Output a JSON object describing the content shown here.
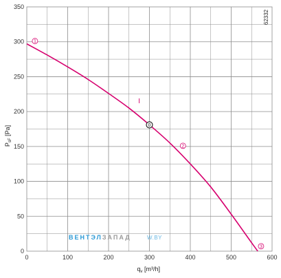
{
  "chart_data": {
    "type": "line",
    "xlabel": {
      "main": "q",
      "sub": "v",
      "unit": " [m³/h]"
    },
    "ylabel": {
      "main": "P",
      "sub": "sF",
      "unit": " [Pa]"
    },
    "xlim": [
      0,
      600
    ],
    "ylim": [
      0,
      350
    ],
    "x_ticks": [
      0,
      100,
      200,
      300,
      400,
      500,
      600
    ],
    "y_ticks": [
      0,
      50,
      100,
      150,
      200,
      250,
      300,
      350
    ],
    "grid": true,
    "code": "62332",
    "series": [
      {
        "color": "#d6006e",
        "x": [
          0,
          50,
          100,
          150,
          200,
          250,
          300,
          350,
          400,
          450,
          500,
          550,
          565
        ],
        "y": [
          297,
          281,
          264,
          246,
          226,
          205,
          181,
          155,
          125,
          92,
          53,
          12,
          0
        ]
      }
    ],
    "curve_label": {
      "text": "I",
      "x": 275,
      "y": 212
    },
    "operating_points": [
      {
        "label": "1",
        "x": 20,
        "y": 301,
        "marker": false
      },
      {
        "label": "2",
        "x": 382,
        "y": 151,
        "marker": false
      },
      {
        "label": "3",
        "x": 573,
        "y": 7,
        "marker": false
      },
      {
        "label": "0",
        "x": 300,
        "y": 181,
        "marker": true
      }
    ],
    "watermark": {
      "part1": "ВЕНТЭЛ",
      "part2": "ЗАПАД",
      "part3": "W.BY",
      "color1": "#2c9ad6",
      "color2": "#9a9a9a"
    },
    "colors": {
      "grid": "#8c8c8c",
      "curve": "#d6006e",
      "axis": "#444444"
    }
  }
}
